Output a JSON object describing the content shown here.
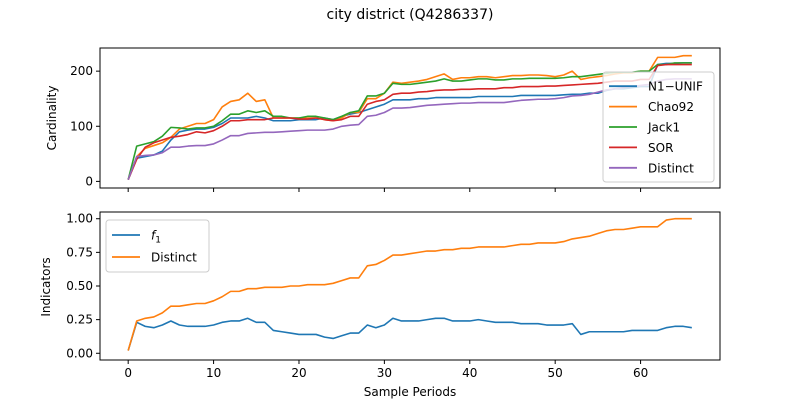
{
  "figure": {
    "title": "city district (Q4286337)"
  },
  "chart_data": [
    {
      "type": "line",
      "title": "",
      "xlabel": "",
      "ylabel": "Cardinality",
      "xlim": [
        -3.3,
        69.3
      ],
      "ylim": [
        -12,
        242
      ],
      "xticks": [
        0,
        10,
        20,
        30,
        40,
        50,
        60
      ],
      "yticks": [
        0,
        100,
        200
      ],
      "legend": "right",
      "series": [
        {
          "name": "N1−UNIF",
          "color": "#1f77b4",
          "values": [
            3,
            42,
            45,
            48,
            55,
            75,
            90,
            93,
            95,
            95,
            98,
            105,
            115,
            115,
            115,
            118,
            115,
            110,
            110,
            110,
            112,
            112,
            112,
            115,
            112,
            118,
            122,
            125,
            130,
            135,
            140,
            148,
            148,
            148,
            150,
            150,
            152,
            152,
            152,
            152,
            152,
            154,
            154,
            154,
            154,
            154,
            156,
            156,
            156,
            156,
            156,
            157,
            158,
            158,
            160,
            160,
            165,
            168,
            168,
            170,
            172,
            172,
            212,
            214,
            214,
            215,
            215
          ]
        },
        {
          "name": "Chao92",
          "color": "#ff7f0e",
          "values": [
            3,
            45,
            60,
            65,
            70,
            80,
            95,
            100,
            105,
            105,
            112,
            135,
            145,
            148,
            160,
            145,
            148,
            115,
            115,
            115,
            115,
            115,
            115,
            112,
            110,
            115,
            125,
            125,
            150,
            150,
            160,
            180,
            178,
            180,
            182,
            185,
            190,
            195,
            185,
            188,
            188,
            190,
            190,
            188,
            190,
            192,
            192,
            193,
            193,
            192,
            190,
            193,
            200,
            185,
            188,
            190,
            192,
            195,
            197,
            197,
            200,
            200,
            225,
            225,
            225,
            228,
            228
          ]
        },
        {
          "name": "Jack1",
          "color": "#2ca02c",
          "values": [
            3,
            64,
            68,
            72,
            82,
            98,
            97,
            95,
            97,
            97,
            100,
            110,
            122,
            122,
            128,
            125,
            128,
            118,
            118,
            115,
            115,
            118,
            118,
            115,
            112,
            118,
            125,
            128,
            155,
            155,
            160,
            178,
            176,
            176,
            178,
            180,
            182,
            186,
            182,
            182,
            184,
            186,
            186,
            184,
            184,
            186,
            186,
            187,
            187,
            187,
            187,
            188,
            190,
            190,
            192,
            194,
            196,
            198,
            198,
            198,
            200,
            200,
            212,
            212,
            215,
            215,
            215
          ]
        },
        {
          "name": "SOR",
          "color": "#d62728",
          "values": [
            3,
            40,
            62,
            70,
            75,
            80,
            82,
            85,
            90,
            88,
            92,
            100,
            110,
            110,
            112,
            112,
            112,
            115,
            115,
            115,
            113,
            113,
            115,
            112,
            110,
            112,
            118,
            118,
            140,
            145,
            148,
            158,
            160,
            160,
            162,
            163,
            165,
            166,
            166,
            167,
            167,
            168,
            168,
            168,
            170,
            170,
            172,
            172,
            172,
            173,
            173,
            174,
            175,
            176,
            177,
            178,
            180,
            182,
            182,
            182,
            185,
            185,
            210,
            212,
            212,
            212,
            212
          ]
        },
        {
          "name": "Distinct",
          "color": "#9467bd",
          "values": [
            3,
            45,
            47,
            48,
            52,
            62,
            62,
            64,
            65,
            65,
            68,
            75,
            83,
            83,
            87,
            88,
            89,
            89,
            90,
            91,
            92,
            93,
            93,
            93,
            95,
            100,
            102,
            103,
            118,
            120,
            125,
            133,
            133,
            134,
            136,
            138,
            139,
            140,
            141,
            142,
            142,
            143,
            143,
            143,
            143,
            145,
            147,
            148,
            149,
            149,
            150,
            152,
            155,
            156,
            158,
            162,
            166,
            168,
            170,
            172,
            174,
            176,
            182,
            185,
            186,
            186,
            186
          ]
        }
      ]
    },
    {
      "type": "line",
      "title": "",
      "xlabel": "Sample Periods",
      "ylabel": "Indicators",
      "xlim": [
        -3.3,
        69.3
      ],
      "ylim": [
        -0.05,
        1.05
      ],
      "xticks": [
        0,
        10,
        20,
        30,
        40,
        50,
        60
      ],
      "yticks": [
        0.0,
        0.25,
        0.5,
        0.75,
        1.0
      ],
      "ytick_labels": [
        "0.00",
        "0.25",
        "0.50",
        "0.75",
        "1.00"
      ],
      "legend": "top-left",
      "series": [
        {
          "name": "f1",
          "color": "#1f77b4",
          "values": [
            0.02,
            0.23,
            0.2,
            0.19,
            0.21,
            0.24,
            0.21,
            0.2,
            0.2,
            0.2,
            0.21,
            0.23,
            0.24,
            0.24,
            0.26,
            0.23,
            0.23,
            0.17,
            0.16,
            0.15,
            0.14,
            0.14,
            0.14,
            0.12,
            0.11,
            0.13,
            0.15,
            0.15,
            0.21,
            0.19,
            0.21,
            0.26,
            0.24,
            0.24,
            0.24,
            0.25,
            0.26,
            0.26,
            0.24,
            0.24,
            0.24,
            0.25,
            0.24,
            0.23,
            0.23,
            0.23,
            0.22,
            0.22,
            0.22,
            0.21,
            0.21,
            0.21,
            0.22,
            0.14,
            0.16,
            0.16,
            0.16,
            0.16,
            0.16,
            0.17,
            0.17,
            0.17,
            0.17,
            0.19,
            0.2,
            0.2,
            0.19
          ]
        },
        {
          "name": "Distinct",
          "color": "#ff7f0e",
          "values": [
            0.02,
            0.24,
            0.26,
            0.27,
            0.3,
            0.35,
            0.35,
            0.36,
            0.37,
            0.37,
            0.39,
            0.42,
            0.46,
            0.46,
            0.48,
            0.48,
            0.49,
            0.49,
            0.49,
            0.5,
            0.5,
            0.51,
            0.51,
            0.51,
            0.52,
            0.54,
            0.56,
            0.56,
            0.65,
            0.66,
            0.69,
            0.73,
            0.73,
            0.74,
            0.75,
            0.76,
            0.76,
            0.77,
            0.77,
            0.78,
            0.78,
            0.79,
            0.79,
            0.79,
            0.79,
            0.8,
            0.81,
            0.81,
            0.82,
            0.82,
            0.82,
            0.83,
            0.85,
            0.86,
            0.87,
            0.89,
            0.91,
            0.92,
            0.92,
            0.93,
            0.94,
            0.94,
            0.94,
            0.99,
            1.0,
            1.0,
            1.0
          ]
        }
      ]
    }
  ]
}
